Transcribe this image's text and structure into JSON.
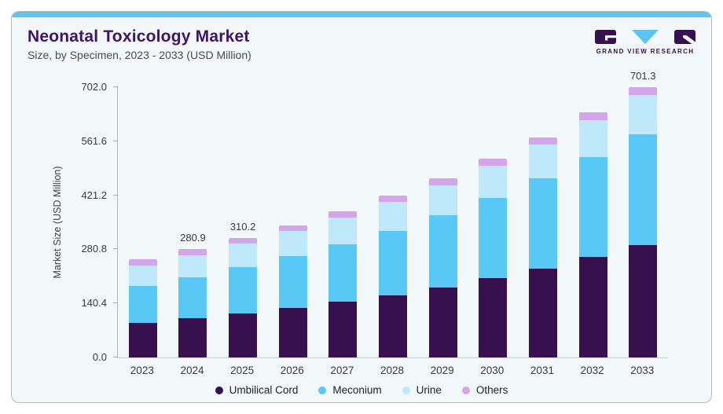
{
  "header": {
    "title": "Neonatal Toxicology Market",
    "subtitle": "Size, by Specimen, 2023 - 2033 (USD Million)",
    "logo_text": "GRAND VIEW RESEARCH"
  },
  "colors": {
    "accent_strip": "#5BC4EF",
    "card_background": "#F2F7FA",
    "title_text": "#3D1566",
    "logo_purple": "#36114E",
    "logo_triangle": "#5BC4EF"
  },
  "chart_data": {
    "type": "bar",
    "stacked": true,
    "title": "Neonatal Toxicology Market",
    "subtitle": "Size, by Specimen, 2023 - 2033 (USD Million)",
    "ylabel": "Market Size (USD Million)",
    "xlabel": "",
    "ylim": [
      0,
      702
    ],
    "yticks": [
      "0.0",
      "140.4",
      "280.8",
      "421.2",
      "561.6",
      "702.0"
    ],
    "grid": false,
    "legend_position": "bottom",
    "categories": [
      "2023",
      "2024",
      "2025",
      "2026",
      "2027",
      "2028",
      "2029",
      "2030",
      "2031",
      "2032",
      "2033"
    ],
    "series": [
      {
        "name": "Umbilical Cord",
        "color": "#36114E",
        "values": [
          89.0,
          101.1,
          114.2,
          128.2,
          144.1,
          162.0,
          182.3,
          205.2,
          231.3,
          260.7,
          291.0
        ]
      },
      {
        "name": "Meconium",
        "color": "#5AC8F5",
        "values": [
          96.9,
          108.1,
          120.7,
          134.7,
          150.1,
          167.5,
          187.0,
          208.9,
          233.5,
          260.7,
          289.0
        ]
      },
      {
        "name": "Urine",
        "color": "#BFE9FA",
        "values": [
          53.2,
          56.7,
          60.5,
          64.8,
          69.0,
          73.9,
          78.6,
          84.1,
          89.3,
          95.4,
          101.0
        ]
      },
      {
        "name": "Others",
        "color": "#D4A5EB",
        "values": [
          15.2,
          15.0,
          14.8,
          15.1,
          15.9,
          16.3,
          17.1,
          17.5,
          18.3,
          19.1,
          20.3
        ]
      }
    ],
    "totals": [
      254.3,
      280.9,
      310.2,
      342.8,
      379.1,
      419.7,
      465.0,
      515.7,
      572.4,
      635.9,
      701.3
    ],
    "bar_total_labels": {
      "2024": "280.9",
      "2025": "310.2",
      "2033": "701.3"
    }
  }
}
